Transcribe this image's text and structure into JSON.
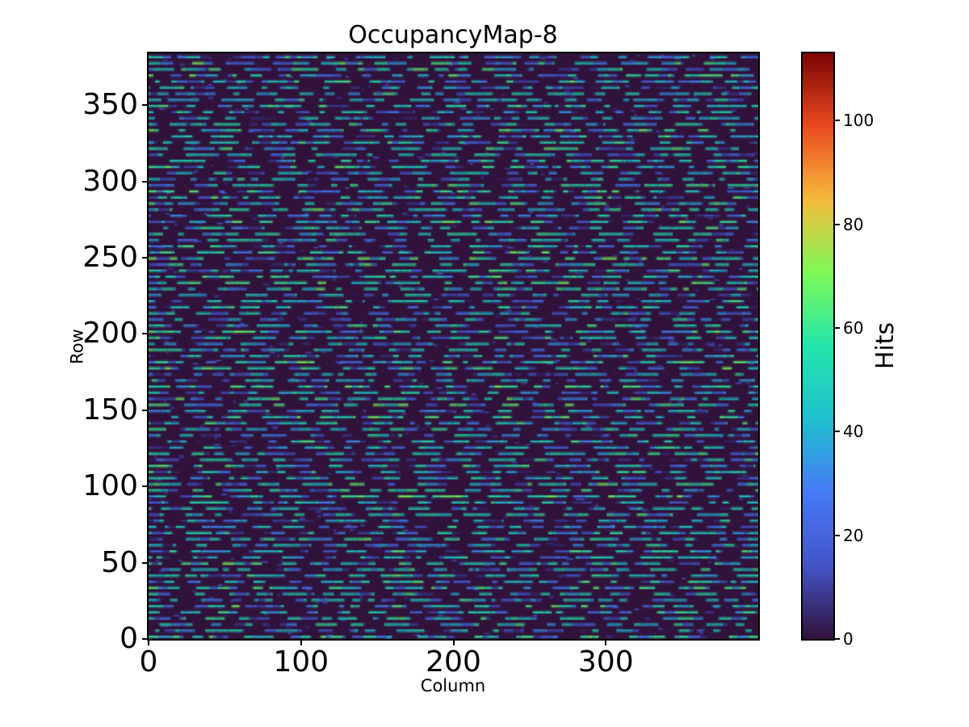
{
  "chart_data": {
    "type": "heatmap",
    "title": "OccupancyMap-8",
    "xlabel": "Column",
    "ylabel": "Row",
    "colorbar_label": "Hits",
    "x_range": [
      0,
      400
    ],
    "y_range": [
      0,
      384
    ],
    "xticks": [
      0,
      100,
      200,
      300
    ],
    "yticks": [
      0,
      50,
      100,
      150,
      200,
      250,
      300,
      350
    ],
    "colorbar_ticks": [
      0,
      20,
      40,
      60,
      80,
      100
    ],
    "vmin": 0,
    "vmax": 113,
    "colormap": "turbo",
    "colormap_stops": [
      "#30123b",
      "#4454c8",
      "#467af8",
      "#1fc0cf",
      "#23e5ab",
      "#7dfa56",
      "#f6ba3a",
      "#eb4a20",
      "#7a0403"
    ],
    "legend_position": "right-colorbar",
    "grid": false,
    "content_note": "Pixel-detector hit occupancy map, 400 columns x 384 rows; hits concentrated in horizontal dashed streaks on every 4th row; streak values mostly 5-68 hits (blue/teal/green), background rows ~0 hits (dark purple)",
    "pattern": {
      "seed": 8,
      "rows": 384,
      "cols": 400,
      "streak_period": 4,
      "streak_phase": 1,
      "run_len": [
        3,
        26
      ],
      "gap_len": [
        2,
        16
      ],
      "segment_len": [
        2,
        9
      ],
      "row_value_bias": [
        -7,
        7
      ],
      "value_mix": [
        {
          "w": 0.36,
          "lo": 46,
          "hi": 60
        },
        {
          "w": 0.2,
          "lo": 34,
          "hi": 46
        },
        {
          "w": 0.22,
          "lo": 16,
          "hi": 32
        },
        {
          "w": 0.13,
          "lo": 5,
          "hi": 15
        },
        {
          "w": 0.09,
          "lo": 58,
          "hi": 68
        }
      ],
      "speck_max_per_row": 9,
      "speck_value": [
        2,
        18
      ],
      "speck_len": [
        1,
        4
      ]
    }
  },
  "colors": {
    "figure_background": "#ffffff",
    "text": "#000000",
    "frame": "#000000",
    "heatmap_background": "#30123b"
  }
}
